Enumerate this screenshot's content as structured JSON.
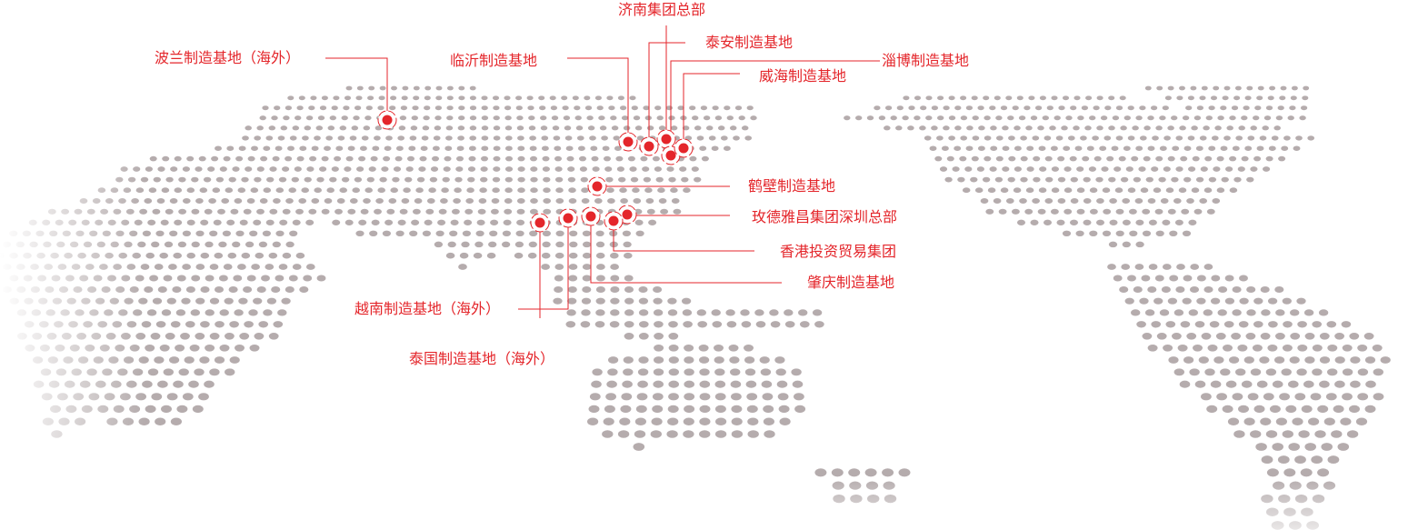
{
  "colors": {
    "accent": "#e4262b",
    "land_dots": "#b5acad"
  },
  "locations": [
    {
      "id": "poland",
      "label": "波兰制造基地（海外）"
    },
    {
      "id": "linyi",
      "label": "临沂制造基地"
    },
    {
      "id": "jinan",
      "label": "济南集团总部"
    },
    {
      "id": "taian",
      "label": "泰安制造基地"
    },
    {
      "id": "zibo",
      "label": "淄博制造基地"
    },
    {
      "id": "weihai",
      "label": "威海制造基地"
    },
    {
      "id": "hebi",
      "label": "鹤壁制造基地"
    },
    {
      "id": "shenzhen",
      "label": "玫德雅昌集团深圳总部"
    },
    {
      "id": "hongkong",
      "label": "香港投资贸易集团"
    },
    {
      "id": "zhaoqing",
      "label": "肇庆制造基地"
    },
    {
      "id": "vietnam",
      "label": "越南制造基地（海外）"
    },
    {
      "id": "thailand",
      "label": "泰国制造基地（海外）"
    }
  ]
}
